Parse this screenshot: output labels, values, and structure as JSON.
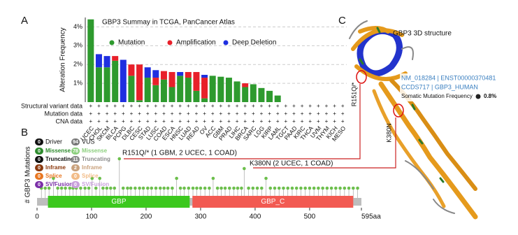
{
  "panel_labels": [
    "A",
    "B",
    "C"
  ],
  "chart_data": [
    {
      "type": "bar",
      "title": "GBP3 Summay in TCGA, PanCancer Atlas",
      "y_label": "Alteration Frequency",
      "stacked": true,
      "grid": true,
      "categories": [
        "UCEC",
        "CHOL",
        "SKCM",
        "BLCA",
        "PCPG",
        "DLBC",
        "CESC",
        "STAD",
        "LUSC",
        "COAD",
        "ESCA",
        "HNSC",
        "LUAD",
        "READ",
        "OV",
        "ACC",
        "GBM",
        "PRAD",
        "LIHC",
        "BRCA",
        "SARC",
        "LGG",
        "KIRP",
        "LAML",
        "TGCT",
        "PAAD",
        "KIRC",
        "THCA",
        "UVM",
        "THYM",
        "KICH",
        "MESO"
      ],
      "series": [
        {
          "name": "Mutation",
          "color": "#2e9a2e",
          "values": [
            4.4,
            1.85,
            1.85,
            2.2,
            0,
            1.4,
            0.1,
            1.3,
            0.9,
            1.2,
            0.8,
            1.4,
            1.3,
            0.6,
            0.2,
            1.4,
            1.35,
            1.3,
            1.1,
            0.8,
            0.95,
            0.75,
            0.6,
            0.35,
            0,
            0,
            0,
            0,
            0,
            0,
            0,
            0
          ]
        },
        {
          "name": "Amplification",
          "color": "#e8202a",
          "values": [
            0,
            0,
            0,
            0.25,
            0,
            0.6,
            1.9,
            0,
            0.4,
            0.45,
            0.8,
            0,
            0.3,
            1.0,
            1.1,
            0,
            0,
            0,
            0,
            0.2,
            0,
            0,
            0,
            0,
            0,
            0,
            0,
            0,
            0,
            0,
            0,
            0
          ]
        },
        {
          "name": "Deep Deletion",
          "color": "#1f2fe0",
          "values": [
            0,
            0.7,
            0.6,
            0,
            2.25,
            0,
            0,
            0.55,
            0.4,
            0,
            0,
            0.2,
            0,
            0,
            0.15,
            0,
            0,
            0,
            0,
            0,
            0,
            0,
            0,
            0,
            0,
            0,
            0,
            0,
            0,
            0,
            0,
            0
          ]
        }
      ],
      "ylim": [
        0,
        4.5
      ],
      "yticks": [
        {
          "value": 1,
          "label": "1%"
        },
        {
          "value": 2,
          "label": "2%"
        },
        {
          "value": 3,
          "label": "3%"
        },
        {
          "value": 4,
          "label": "4%"
        }
      ],
      "row_labels": [
        "Structural variant data",
        "Mutation data",
        "CNA data"
      ],
      "profiled_marker": "+"
    },
    {
      "type": "lollipop",
      "y_label": "# GBP3 Mutations",
      "color": "#6cbf4c",
      "stem_color": "#b0b0b0",
      "x": [
        8,
        15,
        22,
        30,
        38,
        45,
        52,
        60,
        66,
        72,
        80,
        88,
        95,
        101,
        108,
        115,
        121,
        128,
        135,
        142,
        151,
        158,
        166,
        172,
        180,
        188,
        195,
        203,
        210,
        218,
        226,
        233,
        240,
        248,
        256,
        263,
        270,
        278,
        286,
        293,
        300,
        308,
        316,
        323,
        331,
        338,
        345,
        353,
        361,
        368,
        375,
        380,
        388,
        396,
        404,
        412,
        420,
        428,
        436,
        444,
        452,
        460,
        468,
        476,
        484,
        492,
        500,
        508,
        516,
        524,
        532,
        540,
        548,
        556,
        564,
        572,
        580,
        588
      ],
      "values": [
        1,
        1,
        1,
        2,
        1,
        1,
        1,
        1,
        1,
        1,
        1,
        1,
        1,
        2,
        1,
        2,
        1,
        1,
        1,
        1,
        4,
        1,
        1,
        1,
        1,
        1,
        1,
        1,
        1,
        1,
        1,
        1,
        1,
        1,
        2,
        1,
        1,
        1,
        1,
        1,
        1,
        1,
        1,
        2,
        1,
        1,
        1,
        1,
        1,
        1,
        1,
        3,
        1,
        1,
        1,
        1,
        2,
        1,
        1,
        1,
        1,
        1,
        1,
        1,
        1,
        1,
        1,
        1,
        1,
        1,
        1,
        1,
        1,
        1,
        1,
        1,
        1,
        1
      ],
      "xlim": [
        0,
        595
      ],
      "ylim": [
        0,
        4.5
      ],
      "xticks": [
        0,
        100,
        200,
        300,
        400,
        500,
        {
          "value": 595,
          "label": "595aa"
        }
      ],
      "domains": [
        {
          "name": "GBP",
          "start": 20,
          "end": 280,
          "color": "#3cc81e"
        },
        {
          "name": "GBP_C",
          "start": 285,
          "end": 580,
          "color": "#f25a52"
        }
      ],
      "annotations": [
        "R151Q/* (1 GBM, 2 UCEC, 1 COAD)",
        "K380N (2 UCEC, 1 COAD)"
      ],
      "legend": {
        "driver_label": "Driver",
        "driver_count": 0,
        "vus_label": "VUS",
        "vus_count": 94,
        "rows": [
          {
            "name": "Missense",
            "driver": 0,
            "vus": 78,
            "driver_color": "#2e8b2e",
            "vus_color": "#8ccf7e"
          },
          {
            "name": "Truncating",
            "driver": 0,
            "vus": 11,
            "driver_color": "#111111",
            "vus_color": "#8a8a8a"
          },
          {
            "name": "Inframe",
            "driver": 0,
            "vus": 2,
            "driver_color": "#8b3a0f",
            "vus_color": "#c9a27d"
          },
          {
            "name": "Splice",
            "driver": 0,
            "vus": 0,
            "driver_color": "#e87722",
            "vus_color": "#f2bc88"
          },
          {
            "name": "SV/Fusion",
            "driver": 0,
            "vus": 0,
            "driver_color": "#7b2fa8",
            "vus_color": "#c9a0dc"
          }
        ]
      }
    }
  ],
  "structure": {
    "title": "GBP3 3D structure",
    "ids": [
      "NM_018284 | ENST00000370481",
      "CCDS717 | GBP3_HUMAN"
    ],
    "frequency_label": "Somatic Mutation Frequency",
    "frequency": {
      "value": 0.8,
      "label": "0.8%"
    },
    "mutation_labels": [
      "R151Q/*",
      "K380N"
    ]
  }
}
